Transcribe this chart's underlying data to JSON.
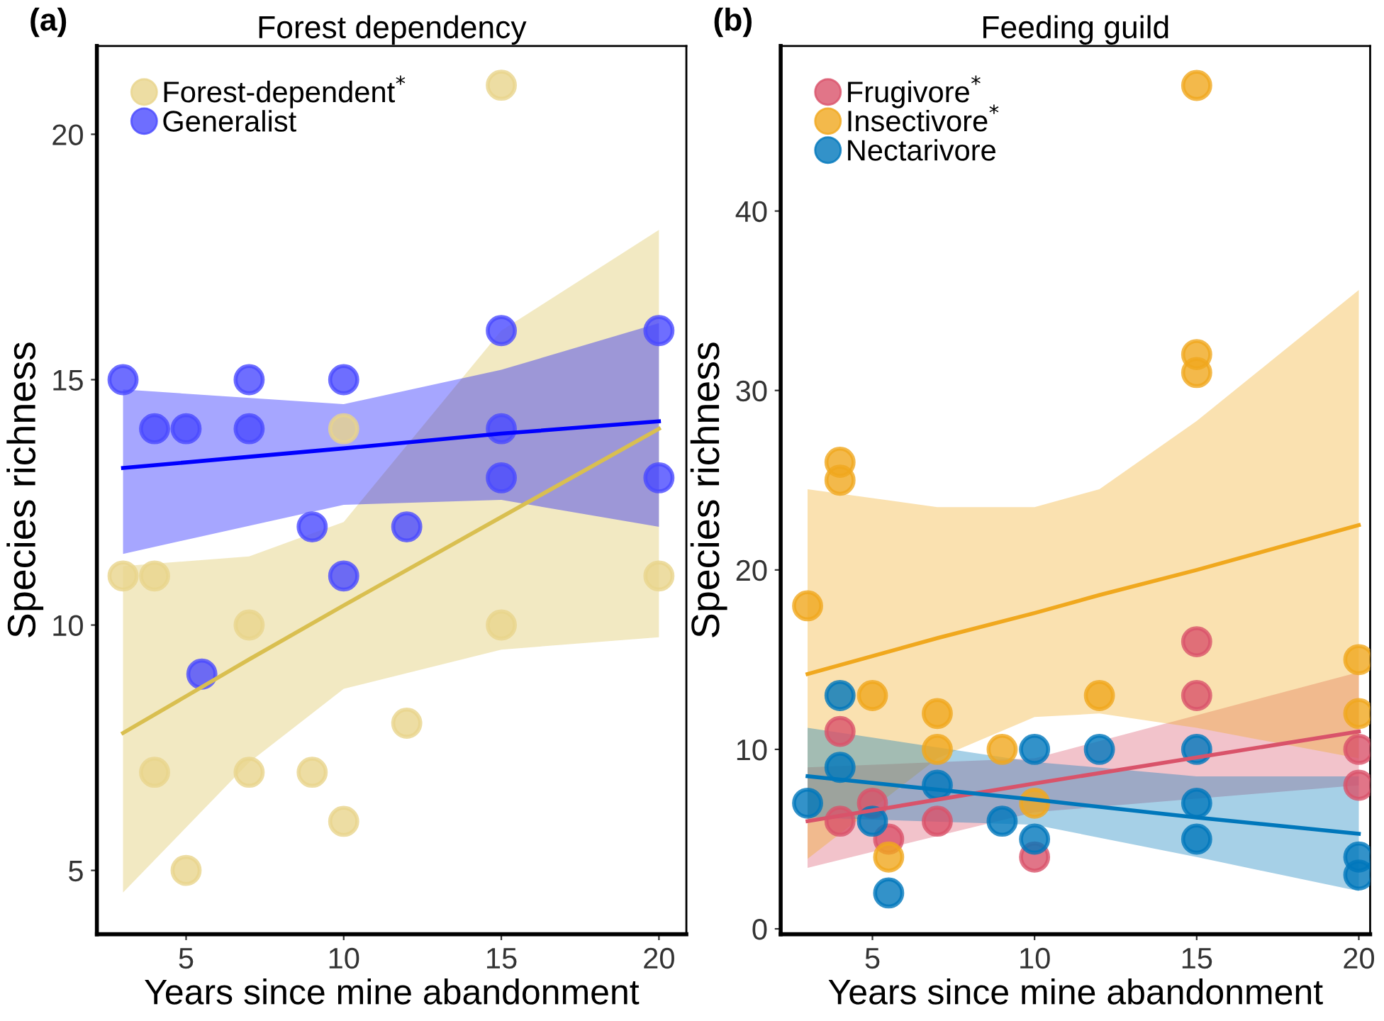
{
  "chart_data": [
    {
      "type": "scatter",
      "title": "Forest dependency",
      "xlabel": "Years since mine abandonment",
      "ylabel": "Species richness",
      "annotations": [
        "(a)"
      ],
      "xlim": [
        2.17,
        20.87
      ],
      "ylim": [
        3.7,
        21.8
      ],
      "xticks": [
        5,
        10,
        15,
        20
      ],
      "yticks": [
        5,
        10,
        15,
        20
      ],
      "grid": false,
      "legend": "top left",
      "marker": "circle",
      "series": [
        {
          "name": "Forest-dependent$^{*}$",
          "color": "#e8d48c",
          "x": [
            3,
            4,
            4,
            5,
            7,
            7,
            9,
            10,
            10,
            12,
            15,
            15,
            20
          ],
          "values": [
            11,
            11,
            7,
            5,
            10,
            7,
            7,
            6,
            14,
            8,
            21,
            10,
            11
          ]
        },
        {
          "name": "Generalist",
          "color": "#4a4aff",
          "x": [
            3,
            4,
            5,
            7,
            7,
            10,
            15,
            15,
            15,
            20,
            20,
            9,
            12,
            10,
            5.5
          ],
          "values": [
            15,
            14,
            14,
            15,
            14,
            15,
            16,
            14,
            13,
            16,
            13,
            12,
            12,
            11,
            9
          ]
        },
        {
          "type": "line",
          "marker": "none",
          "color": "#d9bf50",
          "x": [
            3,
            7,
            10,
            15,
            20
          ],
          "values": [
            7.8,
            9.3,
            10.4,
            12.2,
            14.0
          ],
          "lower": [
            4.55,
            7.2,
            8.7,
            9.5,
            9.75
          ],
          "upper": [
            11.2,
            11.4,
            12.1,
            16.0,
            18.05
          ]
        },
        {
          "type": "line",
          "marker": "none",
          "color": "#0000ff",
          "x": [
            3,
            10,
            15,
            20
          ],
          "values": [
            13.2,
            13.6,
            13.9,
            14.15
          ],
          "lower": [
            11.45,
            12.45,
            12.55,
            12.0
          ],
          "upper": [
            14.8,
            14.5,
            15.2,
            16.15
          ]
        }
      ]
    },
    {
      "type": "scatter",
      "title": "Feeding guild",
      "xlabel": "Years since mine abandonment",
      "ylabel": "Species richness",
      "annotations": [
        "(b)"
      ],
      "xlim": [
        2.17,
        20.35
      ],
      "ylim": [
        -0.3,
        49.2
      ],
      "xticks": [
        5,
        10,
        15,
        20
      ],
      "yticks": [
        0,
        10,
        20,
        30,
        40
      ],
      "grid": false,
      "legend": "top left",
      "marker": "circle",
      "series": [
        {
          "name": "Frugivore$^{*}$",
          "color": "#d9536a",
          "x": [
            4,
            4,
            5,
            5.5,
            7,
            10,
            15,
            15,
            20,
            20
          ],
          "values": [
            11,
            6,
            7,
            5,
            6,
            4,
            16,
            13,
            10,
            8
          ]
        },
        {
          "name": "Insectivore$^{*}$",
          "color": "#f0a81e",
          "x": [
            3,
            4,
            4,
            5,
            5.5,
            7,
            7,
            9,
            10,
            12,
            15,
            15,
            15,
            20,
            20
          ],
          "values": [
            18,
            26,
            25,
            13,
            4,
            12,
            10,
            10,
            7,
            13,
            47,
            32,
            31,
            15,
            12
          ]
        },
        {
          "name": "Nectarivore",
          "color": "#0077bb",
          "x": [
            3,
            4,
            4,
            5,
            5.5,
            7,
            9,
            10,
            10,
            12,
            15,
            15,
            15,
            20,
            20
          ],
          "values": [
            7,
            13,
            9,
            6,
            2,
            8,
            6,
            10,
            5,
            10,
            10,
            7,
            5,
            4,
            3
          ]
        },
        {
          "type": "line",
          "marker": "none",
          "color": "#d9536a",
          "x": [
            3,
            10,
            20
          ],
          "values": [
            6.0,
            8.1,
            11.0
          ],
          "lower": [
            3.4,
            6.5,
            8.0
          ],
          "upper": [
            9.0,
            9.5,
            14.3
          ]
        },
        {
          "type": "line",
          "marker": "none",
          "color": "#f0a81e",
          "x": [
            3,
            7,
            10,
            12,
            15,
            20
          ],
          "values": [
            14.2,
            16.2,
            17.6,
            18.6,
            20.0,
            22.5
          ],
          "lower": [
            3.9,
            9.5,
            11.8,
            12.0,
            11.2,
            9.5
          ],
          "upper": [
            24.5,
            23.5,
            23.5,
            24.5,
            28.3,
            35.6
          ]
        },
        {
          "type": "line",
          "marker": "none",
          "color": "#0077bb",
          "x": [
            3,
            10,
            15,
            20
          ],
          "values": [
            8.5,
            7.2,
            6.2,
            5.3
          ],
          "lower": [
            6.2,
            5.8,
            4.0,
            2.1
          ],
          "upper": [
            11.2,
            9.3,
            8.5,
            8.5
          ]
        }
      ]
    }
  ]
}
